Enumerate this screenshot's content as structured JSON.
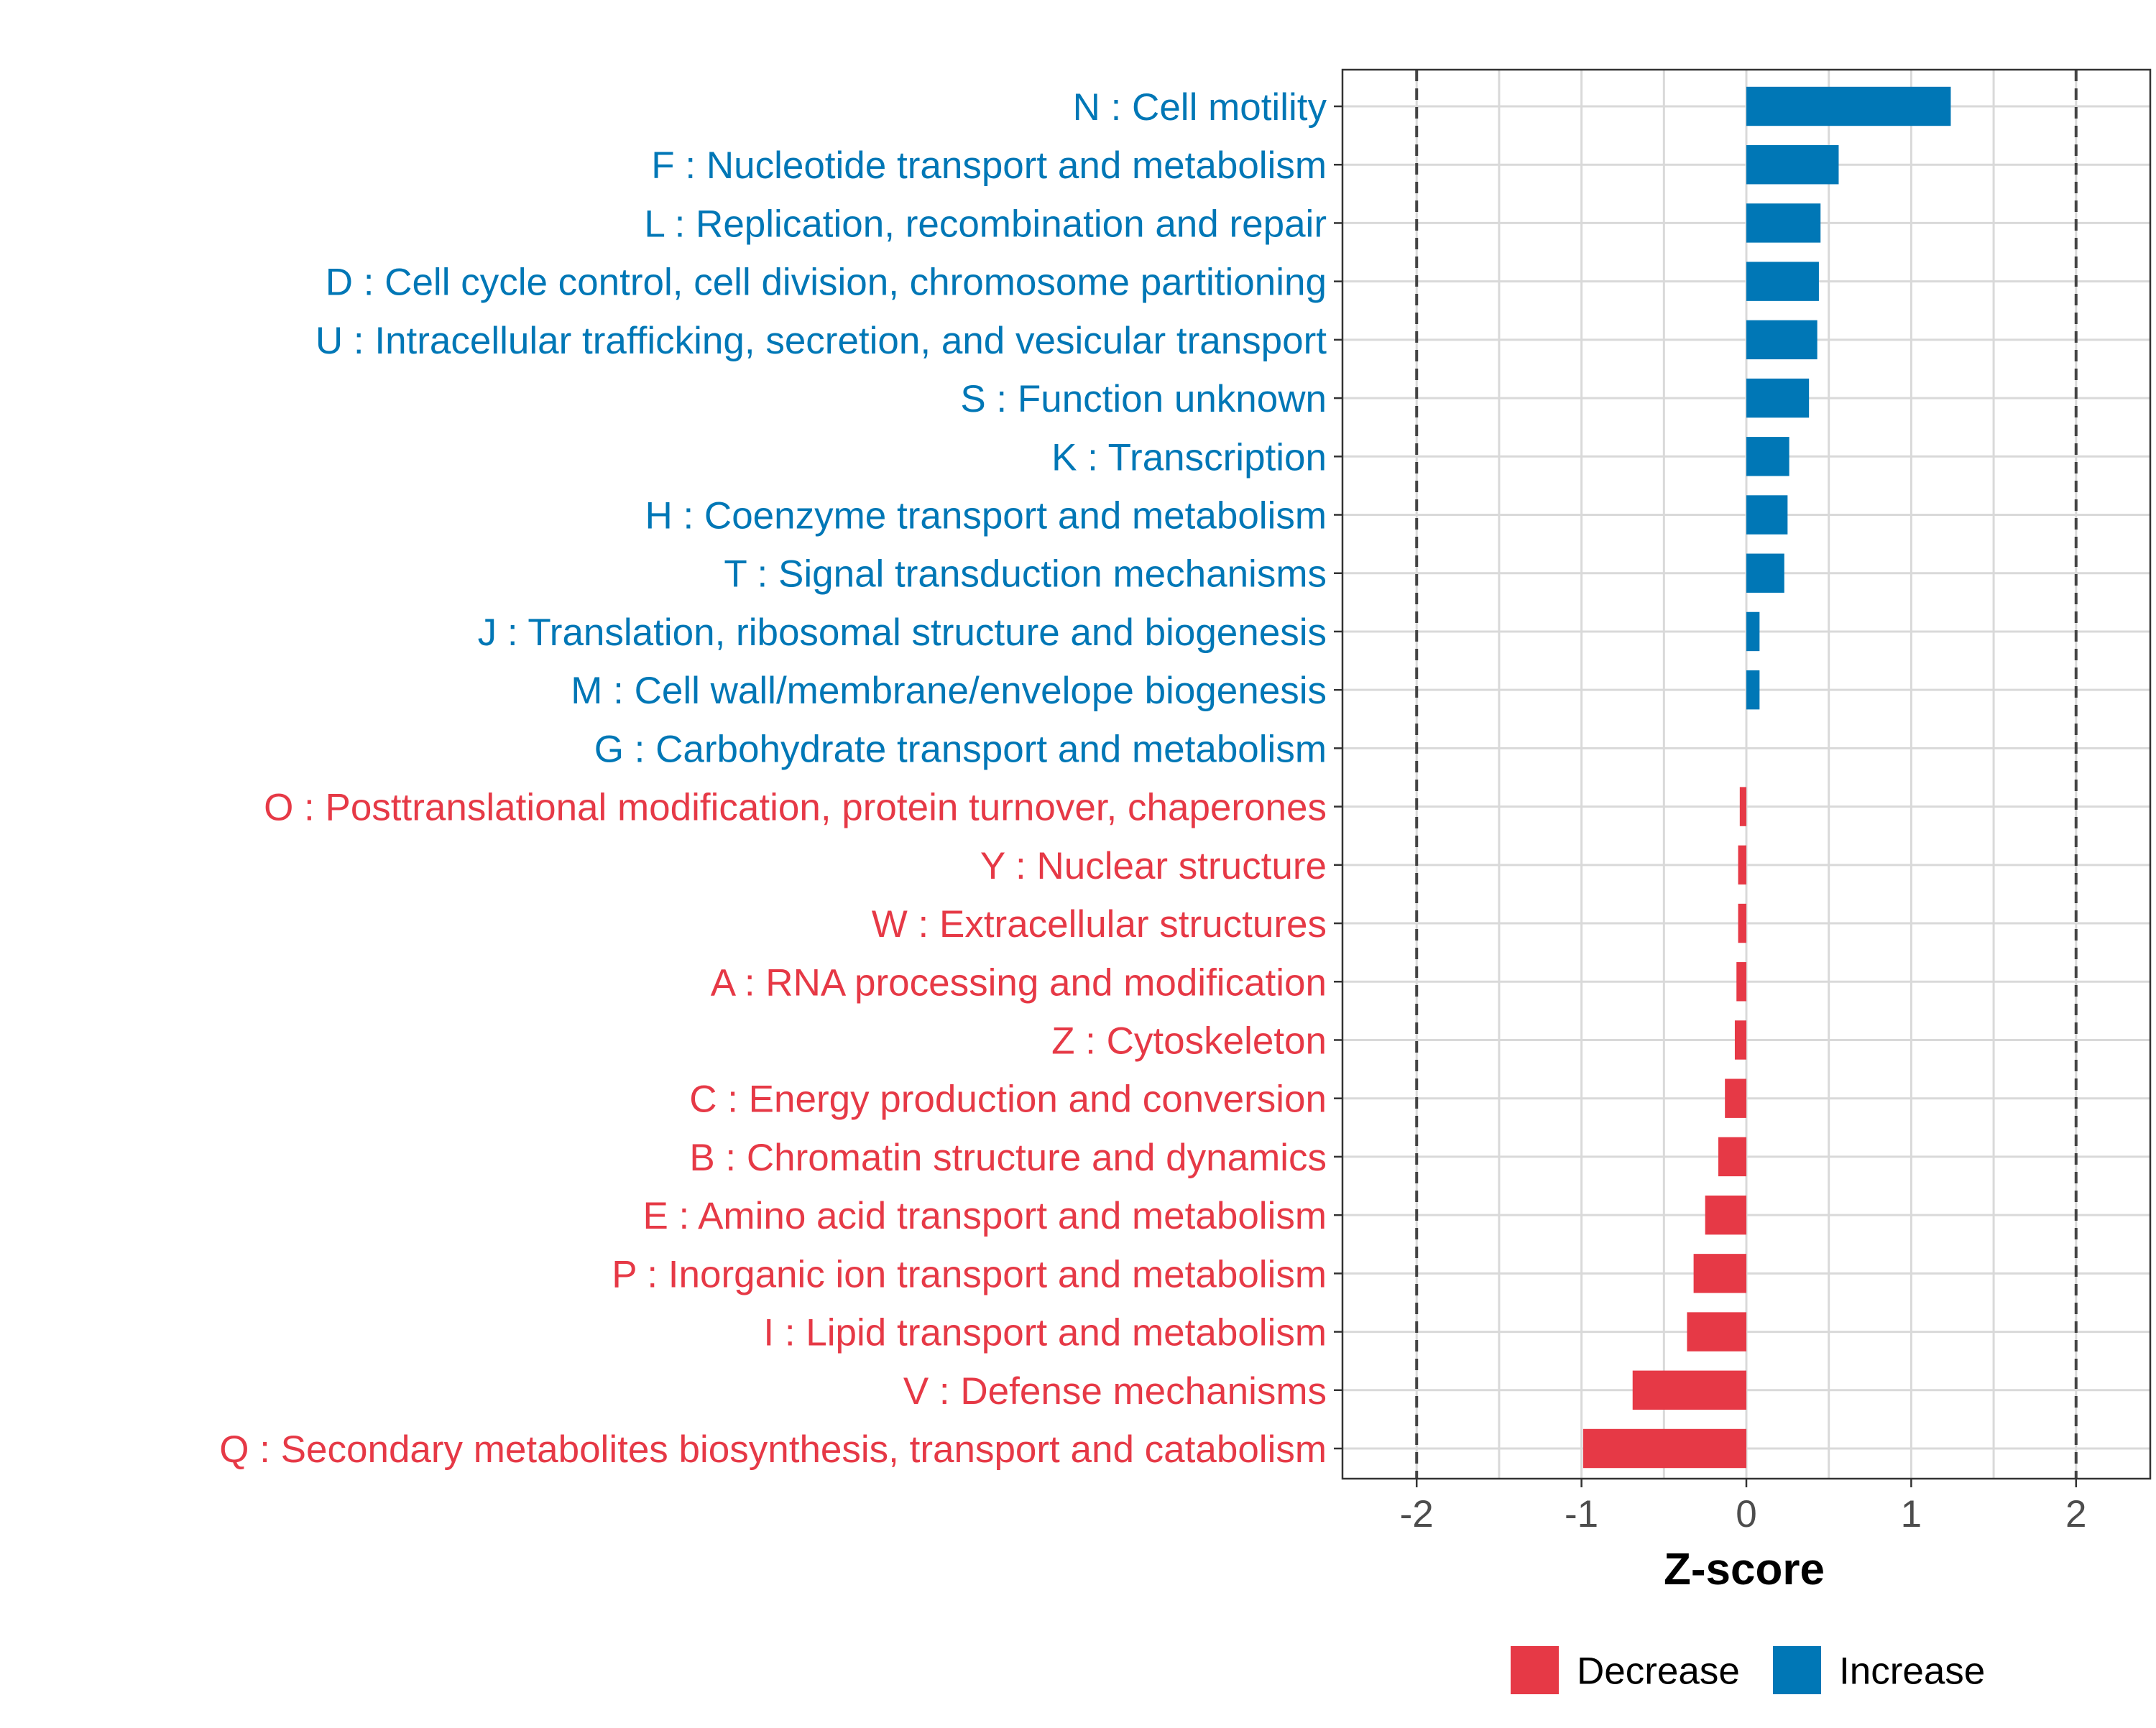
{
  "chart_data": {
    "type": "bar",
    "orientation": "horizontal",
    "xlabel": "Z-score",
    "xlim": [
      -2.45,
      2.45
    ],
    "x_ticks": [
      -2,
      -1,
      0,
      1,
      2
    ],
    "x_tick_labels": [
      "-2",
      "-1",
      "0",
      "1",
      "2"
    ],
    "reference_lines": [
      -2,
      2
    ],
    "grid": true,
    "legend_position": "bottom",
    "legend": [
      {
        "name": "Decrease",
        "color": "#E63946"
      },
      {
        "name": "Increase",
        "color": "#0077B6"
      }
    ],
    "categories": [
      {
        "label": "N : Cell motility",
        "value": 1.24,
        "group": "Increase"
      },
      {
        "label": "F : Nucleotide transport and metabolism",
        "value": 0.56,
        "group": "Increase"
      },
      {
        "label": "L : Replication, recombination and repair",
        "value": 0.45,
        "group": "Increase"
      },
      {
        "label": "D : Cell cycle control, cell division, chromosome partitioning",
        "value": 0.44,
        "group": "Increase"
      },
      {
        "label": "U : Intracellular trafficking, secretion, and vesicular transport",
        "value": 0.43,
        "group": "Increase"
      },
      {
        "label": "S : Function unknown",
        "value": 0.38,
        "group": "Increase"
      },
      {
        "label": "K : Transcription",
        "value": 0.26,
        "group": "Increase"
      },
      {
        "label": "H : Coenzyme transport and metabolism",
        "value": 0.25,
        "group": "Increase"
      },
      {
        "label": "T : Signal transduction mechanisms",
        "value": 0.23,
        "group": "Increase"
      },
      {
        "label": "J : Translation, ribosomal structure and biogenesis",
        "value": 0.08,
        "group": "Increase"
      },
      {
        "label": "M : Cell wall/membrane/envelope biogenesis",
        "value": 0.08,
        "group": "Increase"
      },
      {
        "label": "G : Carbohydrate transport and metabolism",
        "value": 0.0,
        "group": "Increase"
      },
      {
        "label": "O : Posttranslational modification, protein turnover, chaperones",
        "value": -0.04,
        "group": "Decrease"
      },
      {
        "label": "Y : Nuclear structure",
        "value": -0.05,
        "group": "Decrease"
      },
      {
        "label": "W : Extracellular structures",
        "value": -0.05,
        "group": "Decrease"
      },
      {
        "label": "A : RNA processing and modification",
        "value": -0.06,
        "group": "Decrease"
      },
      {
        "label": "Z : Cytoskeleton",
        "value": -0.07,
        "group": "Decrease"
      },
      {
        "label": "C : Energy production and conversion",
        "value": -0.13,
        "group": "Decrease"
      },
      {
        "label": "B : Chromatin structure and dynamics",
        "value": -0.17,
        "group": "Decrease"
      },
      {
        "label": "E : Amino acid transport and metabolism",
        "value": -0.25,
        "group": "Decrease"
      },
      {
        "label": "P : Inorganic ion transport and metabolism",
        "value": -0.32,
        "group": "Decrease"
      },
      {
        "label": "I : Lipid transport and metabolism",
        "value": -0.36,
        "group": "Decrease"
      },
      {
        "label": "V : Defense mechanisms",
        "value": -0.69,
        "group": "Decrease"
      },
      {
        "label": "Q : Secondary metabolites biosynthesis, transport and catabolism",
        "value": -0.99,
        "group": "Decrease"
      }
    ]
  }
}
